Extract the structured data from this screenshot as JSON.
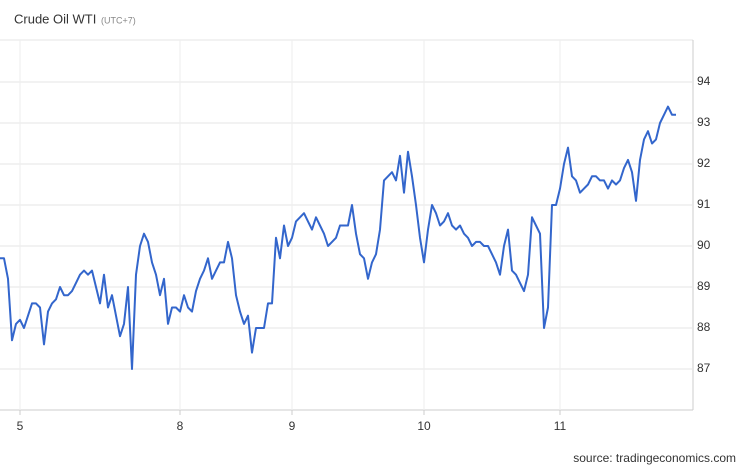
{
  "chart_data": {
    "type": "line",
    "title": "Crude Oil WTI",
    "subtitle": "(UTC+7)",
    "source": "source: tradingeconomics.com",
    "series": [
      {
        "name": "Crude Oil WTI",
        "color": "#3366cc",
        "values": [
          89.7,
          89.7,
          89.2,
          87.7,
          88.1,
          88.2,
          88.0,
          88.3,
          88.6,
          88.6,
          88.5,
          87.6,
          88.4,
          88.6,
          88.7,
          89.0,
          88.8,
          88.8,
          88.9,
          89.1,
          89.3,
          89.4,
          89.3,
          89.4,
          89.0,
          88.6,
          89.3,
          88.5,
          88.8,
          88.3,
          87.8,
          88.1,
          89.0,
          87.0,
          89.3,
          90.0,
          90.3,
          90.1,
          89.6,
          89.3,
          88.8,
          89.2,
          88.1,
          88.5,
          88.5,
          88.4,
          88.8,
          88.5,
          88.4,
          88.9,
          89.2,
          89.4,
          89.7,
          89.2,
          89.4,
          89.6,
          89.6,
          90.1,
          89.7,
          88.8,
          88.4,
          88.1,
          88.3,
          87.4,
          88.0,
          88.0,
          88.0,
          88.6,
          88.6,
          90.2,
          89.7,
          90.5,
          90.0,
          90.2,
          90.6,
          90.7,
          90.8,
          90.6,
          90.4,
          90.7,
          90.5,
          90.3,
          90.0,
          90.1,
          90.2,
          90.5,
          90.5,
          90.5,
          91.0,
          90.3,
          89.8,
          89.7,
          89.2,
          89.6,
          89.8,
          90.4,
          91.6,
          91.7,
          91.8,
          91.6,
          92.2,
          91.3,
          92.3,
          91.7,
          91.0,
          90.2,
          89.6,
          90.4,
          91.0,
          90.8,
          90.5,
          90.6,
          90.8,
          90.5,
          90.4,
          90.5,
          90.3,
          90.2,
          90.0,
          90.1,
          90.1,
          90.0,
          90.0,
          89.8,
          89.6,
          89.3,
          90.0,
          90.4,
          89.4,
          89.3,
          89.1,
          88.9,
          89.3,
          90.7,
          90.5,
          90.3,
          88.0,
          88.5,
          91.0,
          91.0,
          91.4,
          92.0,
          92.4,
          91.7,
          91.6,
          91.3,
          91.4,
          91.5,
          91.7,
          91.7,
          91.6,
          91.6,
          91.4,
          91.6,
          91.5,
          91.6,
          91.9,
          92.1,
          91.8,
          91.1,
          92.1,
          92.6,
          92.8,
          92.5,
          92.6,
          93.0,
          93.2,
          93.4,
          93.2,
          93.2
        ]
      }
    ],
    "xlim": [
      0,
      173
    ],
    "xticks": [
      {
        "value": 5,
        "label": "5"
      },
      {
        "value": 45,
        "label": "8"
      },
      {
        "value": 73,
        "label": "9"
      },
      {
        "value": 106,
        "label": "10"
      },
      {
        "value": 140,
        "label": "11"
      }
    ],
    "ylim": [
      86,
      95
    ],
    "yticks": [
      87,
      88,
      89,
      90,
      91,
      92,
      93,
      94
    ],
    "grid": true
  }
}
